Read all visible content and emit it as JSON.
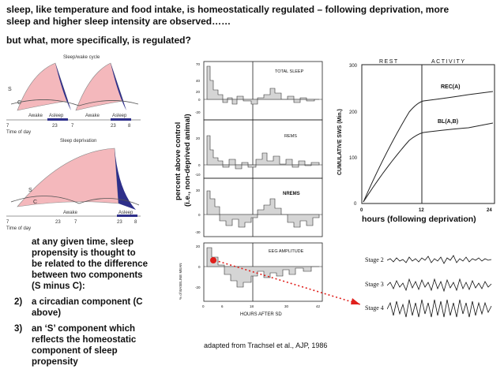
{
  "heading": {
    "line1": "sleep, like temperature and food intake, is homeostatically regulated – following deprivation, more",
    "line2": "sleep and higher sleep intensity are observed……",
    "question": "but what, more specifically, is regulated?"
  },
  "fig_left": {
    "top_title": "Sleep/wake cycle",
    "top_labels": {
      "S": "S",
      "C": "C",
      "awake1": "Awake",
      "asleep1": "Asleep",
      "awake2": "Awake",
      "asleep2": "Asleep",
      "t1": "7",
      "t2": "23",
      "t3": "7",
      "t4": "23",
      "t5": "8",
      "time_of_day": "Time of day"
    },
    "bottom_title": "Sleep deprivation",
    "bottom_labels": {
      "S": "S",
      "C": "C",
      "awake": "Awake",
      "asleep": "Asleep",
      "t1": "7",
      "t2": "23",
      "t3": "7",
      "t4": "23",
      "t5": "8",
      "time_of_day": "Time of day"
    },
    "colors": {
      "pink": "#f4b8bc",
      "blue": "#2e2f8a"
    }
  },
  "text_block": {
    "intro": [
      "at any given time, sleep",
      "propensity is thought to",
      "be related to the difference",
      "between two components",
      "(S minus C):"
    ],
    "item2_num": "2)",
    "item2": [
      "a circadian component (C",
      "above)"
    ],
    "item3_num": "3)",
    "item3": [
      "an ‘S’ component which",
      "reflects the homeostatic",
      "component of sleep",
      "propensity"
    ]
  },
  "fig_middle": {
    "ylabel1": "percent above control",
    "ylabel2": "(i.e., non-deprived animal)",
    "panels": [
      {
        "title": "TOTAL SLEEP",
        "ticks": [
          "70",
          "40",
          "20",
          "0",
          "-20"
        ]
      },
      {
        "title": "REMS",
        "ticks": [
          "20",
          "0",
          "-10"
        ]
      },
      {
        "title": "NREMS",
        "ticks": [
          "30",
          "0",
          "-30"
        ]
      },
      {
        "title": "EEG AMPLITUDE",
        "ticks": [
          "20",
          "0",
          "-20"
        ]
      }
    ],
    "eeg_ylabel": "% of BASELINE MEAN",
    "xticks": [
      "0",
      "6",
      "18",
      "30",
      "42"
    ],
    "xlabel": "HOURS AFTER SD",
    "citation": "adapted from Trachsel et al., AJP, 1986"
  },
  "fig_right": {
    "rest_label": "REST",
    "activity_label": "ACTIVITY",
    "ylabel": "CUMULATIVE SWS (Min.)",
    "yticks": [
      "300",
      "200",
      "100",
      "0"
    ],
    "xticks": [
      "0",
      "12",
      "24"
    ],
    "rec_label": "REC(A)",
    "bl_label": "BL(A,B)",
    "xlabel": "hours (following deprivation)"
  },
  "stages": {
    "stage2": "Stage 2",
    "stage3": "Stage 3",
    "stage4": "Stage 4",
    "arrow_color": "#e0201c"
  }
}
